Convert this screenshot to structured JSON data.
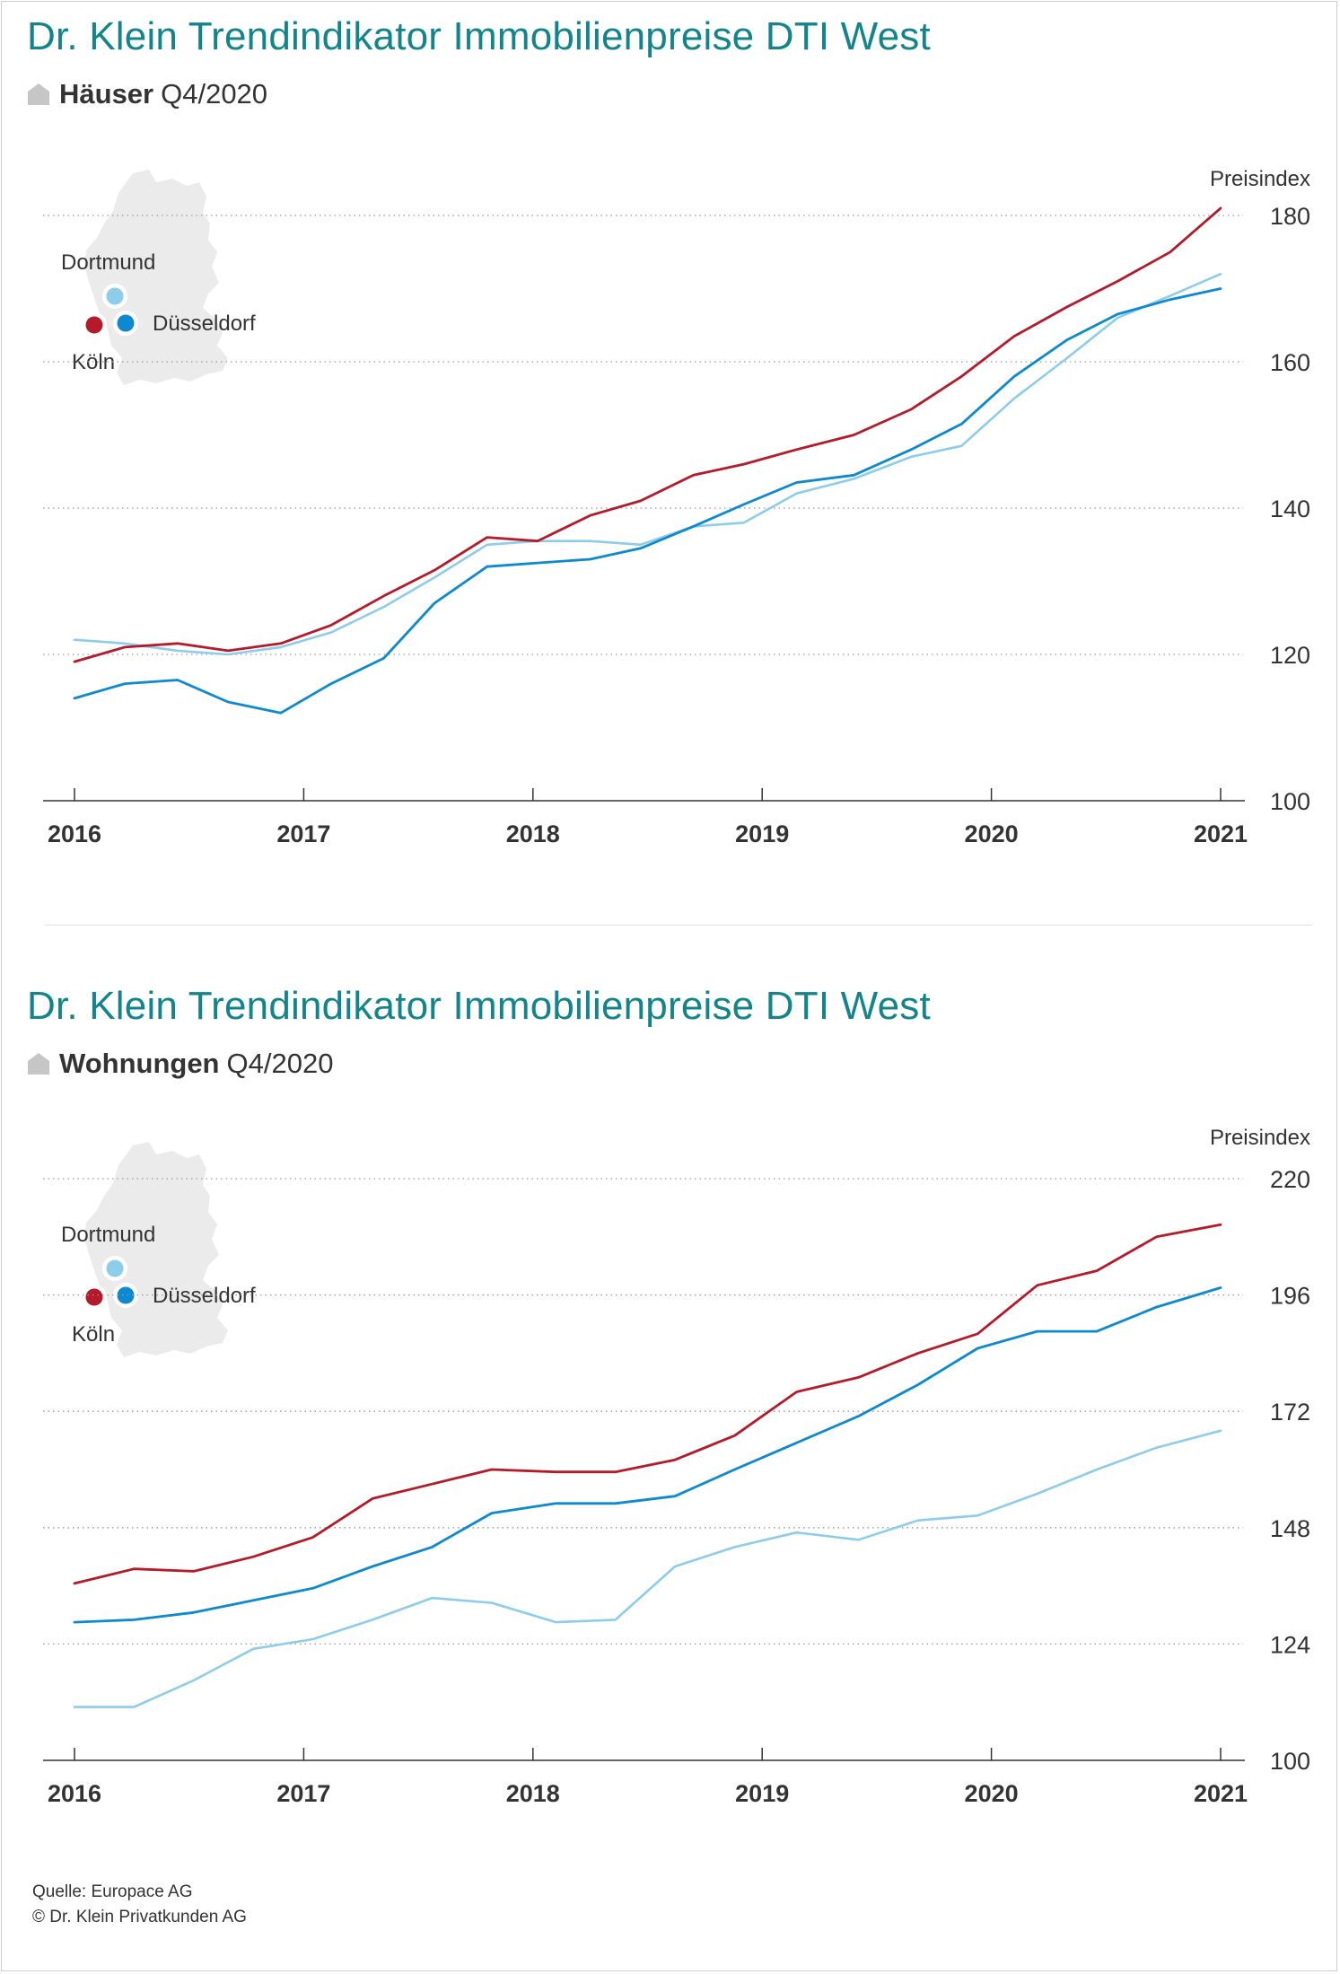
{
  "colors": {
    "koeln": "#b51a2a",
    "duesseldorf": "#0d89cf",
    "dortmund": "#8dcceb",
    "title": "#12858c",
    "map": "#ebebeb",
    "house_icon": "#c6c6c6"
  },
  "footer": {
    "source": "Quelle: Europace AG",
    "copyright": "© Dr. Klein Privatkunden AG"
  },
  "chart_data": [
    {
      "type": "line",
      "title": "Dr. Klein Trendindikator Immobilienpreise DTI West",
      "subtitle_bold": "Häuser",
      "subtitle_rest": "Q4/2020",
      "ylabel": "Preisindex",
      "ylim": [
        100,
        180
      ],
      "yticks": [
        100,
        120,
        140,
        160,
        180
      ],
      "xlim": [
        2016,
        2021
      ],
      "xticks": [
        2016,
        2017,
        2018,
        2019,
        2020,
        2021
      ],
      "grid": true,
      "legend_labels": {
        "dortmund": "Dortmund",
        "duesseldorf": "Düsseldorf",
        "koeln": "Köln"
      },
      "series": [
        {
          "name": "Köln",
          "key": "koeln",
          "x": [
            2016,
            2016.22,
            2016.45,
            2016.67,
            2016.9,
            2017.12,
            2017.35,
            2017.57,
            2017.8,
            2018.02,
            2018.25,
            2018.47,
            2018.7,
            2018.92,
            2019.15,
            2019.4,
            2019.65,
            2019.87,
            2020.1,
            2020.33,
            2020.55,
            2020.78,
            2021
          ],
          "values": [
            119,
            121,
            121.5,
            120.5,
            121.5,
            124,
            128,
            131.5,
            136,
            135.5,
            139,
            141,
            144.5,
            146,
            148,
            150,
            153.5,
            158,
            163.5,
            167.5,
            171,
            175,
            181
          ]
        },
        {
          "name": "Düsseldorf",
          "key": "duesseldorf",
          "x": [
            2016,
            2016.22,
            2016.45,
            2016.67,
            2016.9,
            2017.12,
            2017.35,
            2017.57,
            2017.8,
            2018.02,
            2018.25,
            2018.47,
            2018.7,
            2018.92,
            2019.15,
            2019.4,
            2019.65,
            2019.87,
            2020.1,
            2020.33,
            2020.55,
            2020.78,
            2021
          ],
          "values": [
            114,
            116,
            116.5,
            113.5,
            112,
            116,
            119.5,
            127,
            132,
            132.5,
            133,
            134.5,
            137.5,
            140.5,
            143.5,
            144.5,
            148,
            151.5,
            158,
            163,
            166.5,
            168.5,
            170
          ]
        },
        {
          "name": "Dortmund",
          "key": "dortmund",
          "x": [
            2016,
            2016.22,
            2016.45,
            2016.67,
            2016.9,
            2017.12,
            2017.35,
            2017.57,
            2017.8,
            2018.02,
            2018.25,
            2018.47,
            2018.7,
            2018.92,
            2019.15,
            2019.4,
            2019.65,
            2019.87,
            2020.1,
            2020.33,
            2020.55,
            2020.78,
            2021
          ],
          "values": [
            122,
            121.5,
            120.5,
            120,
            121,
            123,
            126.5,
            130.5,
            135,
            135.5,
            135.5,
            135,
            137.5,
            138,
            142,
            144,
            147,
            148.5,
            155,
            160.5,
            166,
            169,
            172
          ]
        }
      ]
    },
    {
      "type": "line",
      "title": "Dr. Klein Trendindikator Immobilienpreise DTI West",
      "subtitle_bold": "Wohnungen",
      "subtitle_rest": "Q4/2020",
      "ylabel": "Preisindex",
      "ylim": [
        100,
        220
      ],
      "yticks": [
        100,
        124,
        148,
        172,
        196,
        220
      ],
      "xlim": [
        2016,
        2021
      ],
      "xticks": [
        2016,
        2017,
        2018,
        2019,
        2020,
        2021
      ],
      "grid": true,
      "legend_labels": {
        "dortmund": "Dortmund",
        "duesseldorf": "Düsseldorf",
        "koeln": "Köln"
      },
      "series": [
        {
          "name": "Köln",
          "key": "koeln",
          "x": [
            2016,
            2016.26,
            2016.52,
            2016.78,
            2017.04,
            2017.3,
            2017.56,
            2017.82,
            2018.1,
            2018.36,
            2018.62,
            2018.88,
            2019.15,
            2019.42,
            2019.68,
            2019.94,
            2020.2,
            2020.46,
            2020.72,
            2021
          ],
          "values": [
            136.5,
            139.5,
            139,
            142,
            146,
            154,
            157,
            160,
            159.5,
            159.5,
            162,
            167,
            176,
            179,
            184,
            188,
            198,
            201,
            208,
            210.5
          ]
        },
        {
          "name": "Düsseldorf",
          "key": "duesseldorf",
          "x": [
            2016,
            2016.26,
            2016.52,
            2016.78,
            2017.04,
            2017.3,
            2017.56,
            2017.82,
            2018.1,
            2018.36,
            2018.62,
            2018.88,
            2019.15,
            2019.42,
            2019.68,
            2019.94,
            2020.2,
            2020.46,
            2020.72,
            2021
          ],
          "values": [
            128.5,
            129,
            130.5,
            133,
            135.5,
            140,
            144,
            151,
            153,
            153,
            154.5,
            160,
            165.5,
            171,
            177.5,
            185,
            188.5,
            188.5,
            193.5,
            197.5
          ]
        },
        {
          "name": "Dortmund",
          "key": "dortmund",
          "x": [
            2016,
            2016.26,
            2016.52,
            2016.78,
            2017.04,
            2017.3,
            2017.56,
            2017.82,
            2018.1,
            2018.36,
            2018.62,
            2018.88,
            2019.15,
            2019.42,
            2019.68,
            2019.94,
            2020.2,
            2020.46,
            2020.72,
            2021
          ],
          "values": [
            111,
            111,
            116.5,
            123,
            125,
            129,
            133.5,
            132.5,
            128.5,
            129,
            140,
            144,
            147,
            145.5,
            149.5,
            150.5,
            155,
            160,
            164.5,
            168
          ]
        }
      ]
    }
  ]
}
